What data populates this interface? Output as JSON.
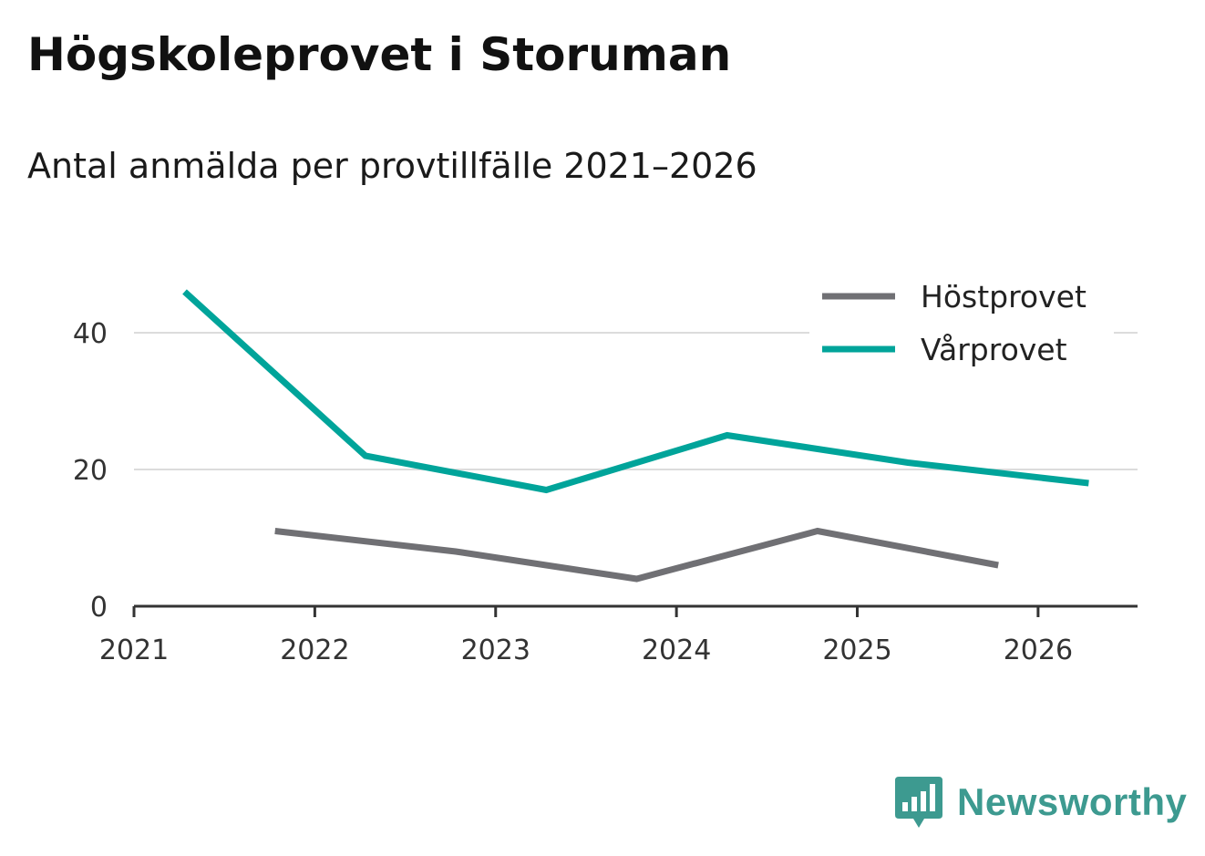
{
  "chart_data": {
    "type": "line",
    "title": "Högskoleprovet i Storuman",
    "subtitle": "Antal anmälda per provtillfälle 2021–2026",
    "xlabel": "",
    "ylabel": "",
    "xlim": [
      2021,
      2026.55
    ],
    "ylim": [
      0,
      50
    ],
    "x_ticks": [
      "2021",
      "2022",
      "2023",
      "2024",
      "2025",
      "2026"
    ],
    "y_ticks": [
      "0",
      "20",
      "40"
    ],
    "grid": true,
    "legend_position": "top-right",
    "series": [
      {
        "name": "Höstprovet",
        "color": "#707074",
        "x": [
          2021.78,
          2022.78,
          2023.78,
          2024.78,
          2025.78
        ],
        "values": [
          11,
          8,
          4,
          11,
          6
        ]
      },
      {
        "name": "Vårprovet",
        "color": "#00a49a",
        "x": [
          2021.28,
          2022.28,
          2023.28,
          2024.28,
          2025.28,
          2026.28
        ],
        "values": [
          46,
          22,
          17,
          25,
          21,
          18
        ]
      }
    ]
  },
  "brand": {
    "name": "Newsworthy",
    "logo_icon": "newsworthy-logo-icon",
    "color": "#3d9a90"
  }
}
